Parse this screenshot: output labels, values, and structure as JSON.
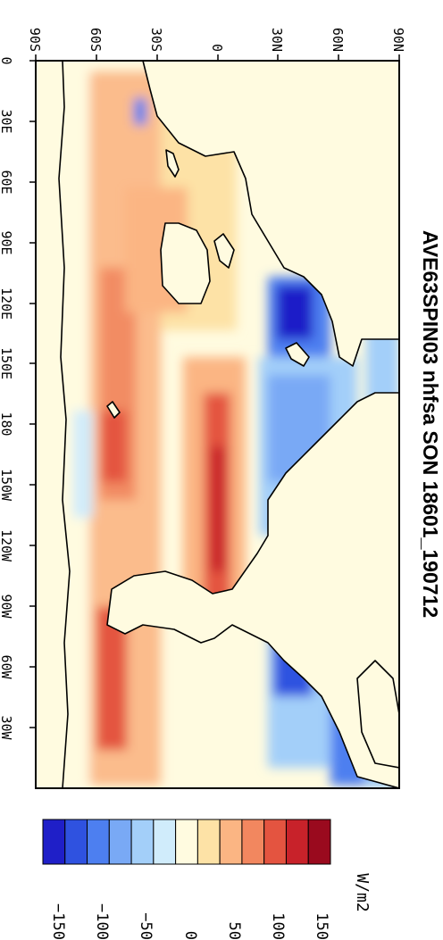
{
  "title": "AVE63SPIN03 nhfsa SON 18601_190712",
  "units": "W/m2",
  "map": {
    "longitude_ticks": [
      "0",
      "30E",
      "60E",
      "90E",
      "120E",
      "150E",
      "180",
      "150W",
      "120W",
      "90W",
      "60W",
      "30W"
    ],
    "latitude_ticks": [
      "90S",
      "60S",
      "30S",
      "0",
      "30N",
      "60N",
      "90N"
    ]
  },
  "colorbar": {
    "labels": [
      "−150",
      "−100",
      "−50",
      "0",
      "50",
      "100",
      "150"
    ],
    "colors": [
      "#1f1fc8",
      "#2f52e0",
      "#4d7ff0",
      "#79a9f5",
      "#a3cff9",
      "#d0ecfb",
      "#fffbe0",
      "#fde2a6",
      "#fbb583",
      "#f2875f",
      "#e45440",
      "#c8222a",
      "#9a0a1e"
    ]
  }
}
